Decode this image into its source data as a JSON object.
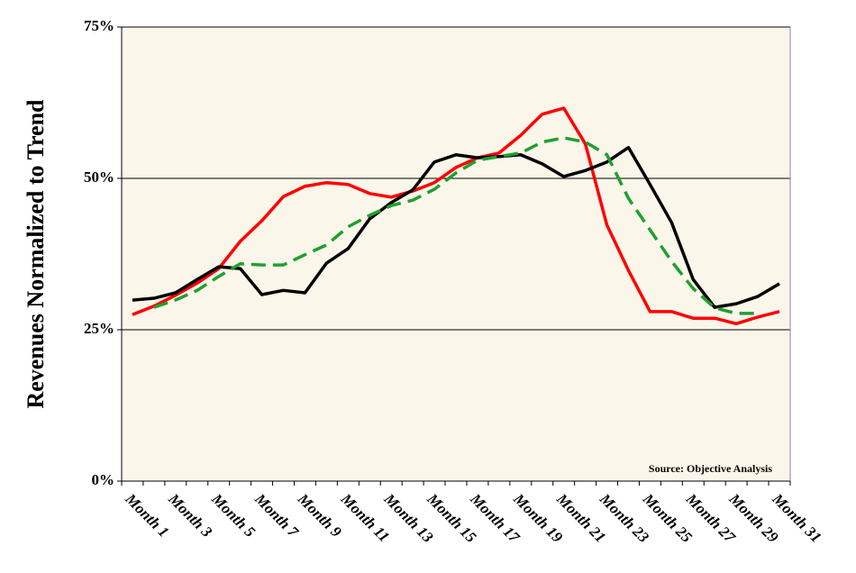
{
  "chart_data": {
    "type": "line",
    "y_label": "Revenues Normalized to Trend",
    "annotation": "Source: Objective Analysis",
    "categories": [
      "Month 1",
      null,
      "Month 3",
      null,
      "Month 5",
      null,
      "Month 7",
      null,
      "Month 9",
      null,
      "Month 11",
      null,
      "Month 13",
      null,
      "Month 15",
      null,
      "Month 17",
      null,
      "Month 19",
      null,
      "Month 21",
      null,
      "Month 23",
      null,
      "Month 25",
      null,
      "Month 27",
      null,
      "Month 29",
      null,
      "Month 31"
    ],
    "series": [
      {
        "color": "#ff0000",
        "dash": false,
        "values": [
          27.5,
          28.9,
          30.7,
          32.7,
          35.1,
          39.6,
          43.0,
          47.0,
          48.7,
          49.3,
          49.0,
          47.5,
          46.9,
          47.9,
          49.3,
          51.8,
          53.4,
          54.2,
          57.1,
          60.6,
          61.6,
          55.7,
          42.3,
          34.8,
          28.0,
          28.0,
          26.9,
          26.9,
          26.0,
          27.1,
          28.0
        ]
      },
      {
        "color": "#000000",
        "dash": false,
        "values": [
          29.9,
          30.2,
          31.1,
          33.3,
          35.4,
          35.1,
          30.8,
          31.5,
          31.1,
          36.0,
          38.4,
          43.3,
          46.0,
          48.1,
          52.7,
          53.9,
          53.4,
          53.6,
          53.9,
          52.4,
          50.3,
          51.3,
          52.7,
          55.1,
          49.0,
          42.7,
          33.3,
          28.7,
          29.3,
          30.5,
          32.6
        ]
      },
      {
        "color": "#1fa02f",
        "dash": true,
        "values": [
          null,
          28.7,
          29.9,
          31.5,
          33.8,
          35.9,
          35.7,
          35.7,
          37.4,
          39.0,
          42.0,
          43.9,
          45.5,
          46.4,
          48.2,
          50.9,
          53.0,
          53.6,
          54.2,
          56.0,
          56.7,
          56.0,
          53.9,
          46.7,
          41.5,
          36.3,
          31.8,
          28.6,
          27.7,
          27.7,
          null
        ]
      }
    ],
    "ylim": [
      0,
      75
    ],
    "yticks": [
      {
        "value": 0,
        "label": "0%"
      },
      {
        "value": 25,
        "label": "25%"
      },
      {
        "value": 50,
        "label": "50%"
      },
      {
        "value": 75,
        "label": "75%"
      }
    ],
    "grid": true
  }
}
